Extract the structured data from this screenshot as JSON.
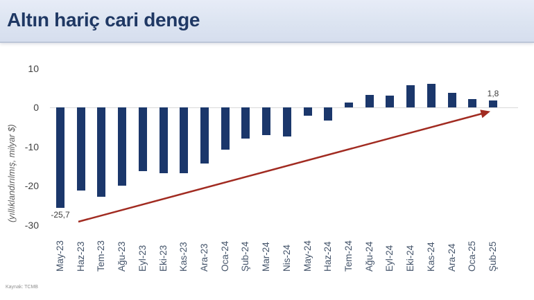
{
  "header": {
    "title": "Altın hariç cari denge"
  },
  "footer": {
    "source": "Kaynak: TCMB"
  },
  "chart_data": {
    "type": "bar",
    "title": "Altın hariç cari denge",
    "ylabel": "(yıllıklandırılmış, milyar $)",
    "unit": "milyar $ (yıllıklandırılmış)",
    "categories": [
      "May-23",
      "Haz-23",
      "Tem-23",
      "Ağu-23",
      "Eyl-23",
      "Eki-23",
      "Kas-23",
      "Ara-23",
      "Oca-24",
      "Şub-24",
      "Mar-24",
      "Nis-24",
      "May-24",
      "Haz-24",
      "Tem-24",
      "Ağu-24",
      "Eyl-24",
      "Eki-24",
      "Kas-24",
      "Ara-24",
      "Oca-25",
      "Şub-25"
    ],
    "values": [
      -25.7,
      -21.3,
      -22.9,
      -20.0,
      -16.2,
      -16.9,
      -16.8,
      -14.3,
      -10.8,
      -8.0,
      -7.0,
      -7.4,
      -2.2,
      -3.4,
      1.2,
      3.1,
      3.0,
      5.6,
      6.0,
      3.7,
      2.1,
      1.8
    ],
    "yticks": [
      10,
      0,
      -10,
      -20,
      -30
    ],
    "ylim": [
      -30,
      10
    ],
    "gridlines": "none, only zero axis line",
    "legend": "none",
    "data_labels": [
      {
        "category": "May-23",
        "text": "-25,7",
        "placement": "below-bar"
      },
      {
        "category": "Şub-25",
        "text": "1,8",
        "placement": "above-bar"
      }
    ],
    "annotations": [
      {
        "type": "arrow",
        "description": "red trend arrow from the May-23 trough up to the Şub-25 bar"
      }
    ],
    "colors": {
      "bar": "#1b376b",
      "arrow": "#a12b21",
      "zero_line": "#d9d9d9"
    }
  },
  "colors": {
    "header_bg": "#dce4f1",
    "title_text": "#1f3864",
    "axis_text": "#404040",
    "xlabel_text": "#44546a",
    "ylabel_text": "#595959",
    "annotation_text": "#3d3d3d",
    "source_text": "#8f8f8f"
  }
}
